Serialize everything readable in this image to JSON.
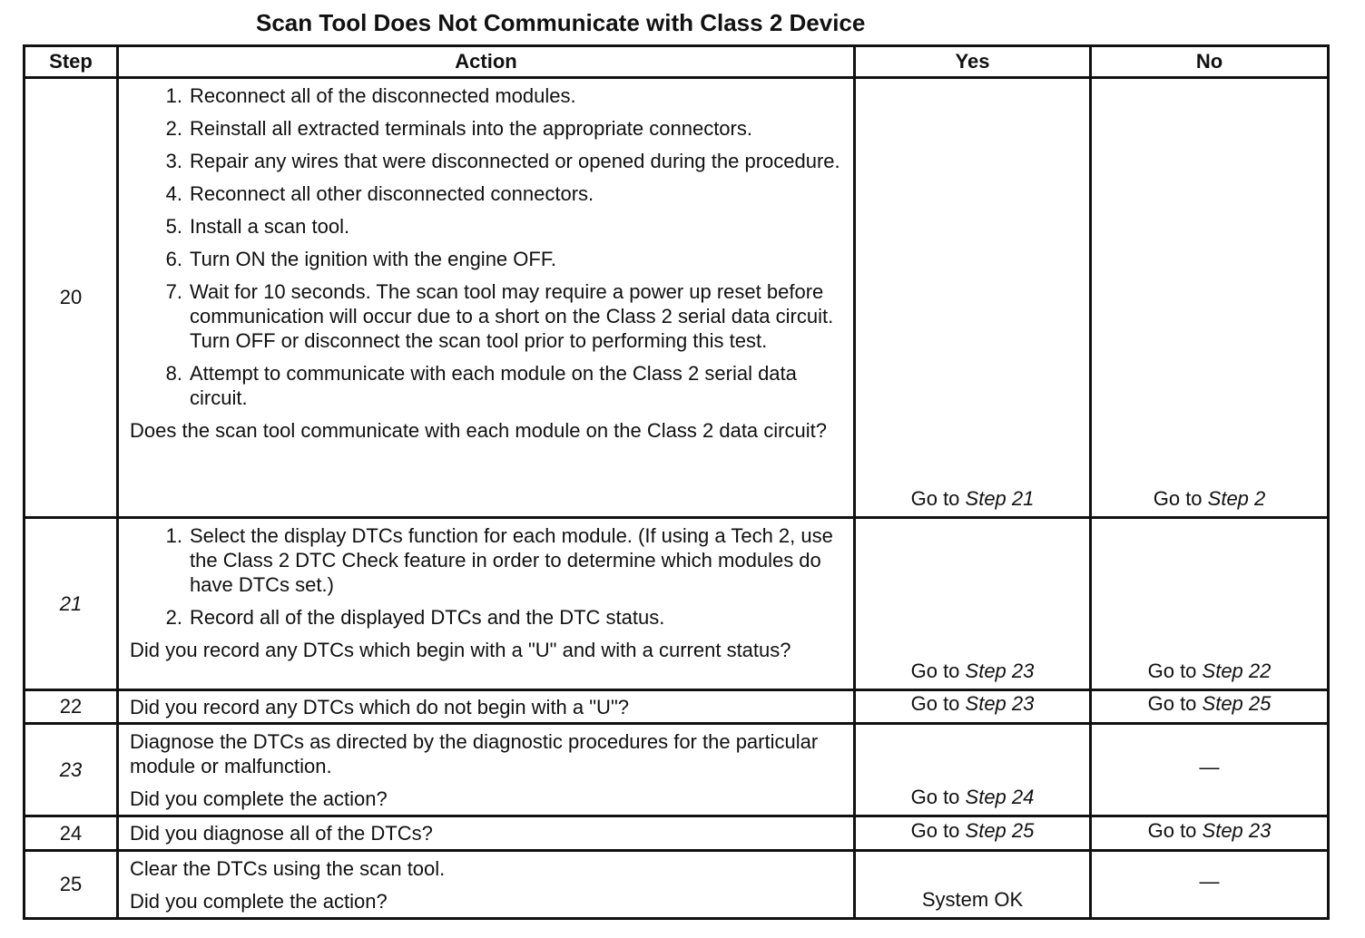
{
  "title": "Scan Tool Does Not Communicate with Class 2 Device",
  "headers": {
    "step": "Step",
    "action": "Action",
    "yes": "Yes",
    "no": "No"
  },
  "rows": [
    {
      "step": "20",
      "items": [
        "Reconnect all of the disconnected modules.",
        "Reinstall all extracted terminals into the appropriate connectors.",
        "Repair any wires that were disconnected or opened during the procedure.",
        "Reconnect all other disconnected connectors.",
        "Install a scan tool.",
        "Turn ON the ignition with the engine OFF.",
        "Wait for 10 seconds. The scan tool may require a power up reset before communication will occur due to a short on the Class 2 serial data circuit. Turn OFF or disconnect the scan tool prior to performing this test.",
        "Attempt to communicate with each module on the Class 2 serial data circuit."
      ],
      "question": "Does the scan tool communicate with each module on the Class 2 data circuit?",
      "yes_prefix": "Go to ",
      "yes_step": "Step 21",
      "no_prefix": "Go to ",
      "no_step": "Step 2"
    },
    {
      "step": "21",
      "items": [
        "Select the display DTCs function for each module. (If using a Tech 2, use the Class 2 DTC Check feature in order to determine which modules do have DTCs set.)",
        "Record all of the displayed DTCs and the DTC status."
      ],
      "question": "Did you record any DTCs which begin with a \"U\" and with a current status?",
      "yes_prefix": "Go to ",
      "yes_step": "Step 23",
      "no_prefix": "Go to ",
      "no_step": "Step 22"
    },
    {
      "step": "22",
      "question": "Did you record any DTCs which do not begin with a \"U\"?",
      "yes_prefix": "Go to ",
      "yes_step": "Step 23",
      "no_prefix": "Go to ",
      "no_step": "Step 25"
    },
    {
      "step": "23",
      "text": "Diagnose the DTCs as directed by the diagnostic procedures for the particular module or malfunction.",
      "question": "Did you complete the action?",
      "yes_prefix": "Go to ",
      "yes_step": "Step 24",
      "no": "—"
    },
    {
      "step": "24",
      "question": "Did you diagnose all of the DTCs?",
      "yes_prefix": "Go to ",
      "yes_step": "Step 25",
      "no_prefix": "Go to ",
      "no_step": "Step 23"
    },
    {
      "step": "25",
      "text": "Clear the DTCs using the scan tool.",
      "question": "Did you complete the action?",
      "yes": "System OK",
      "no": "—"
    }
  ]
}
